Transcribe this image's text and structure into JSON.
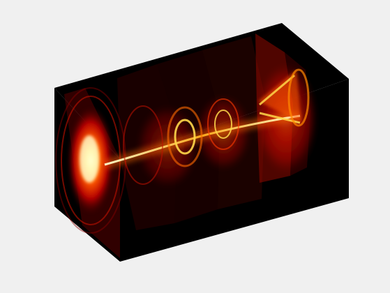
{
  "figure": {
    "background": "#f0f0f0",
    "volume_background": "#000000",
    "colormap": "hot",
    "colormap_stops": [
      "#000000",
      "#5a0000",
      "#b40000",
      "#ff2a00",
      "#ff8a00",
      "#ffd84a",
      "#ffffd0"
    ],
    "slice_count": 6,
    "axes_visible": false,
    "view": "3-D oblique"
  }
}
